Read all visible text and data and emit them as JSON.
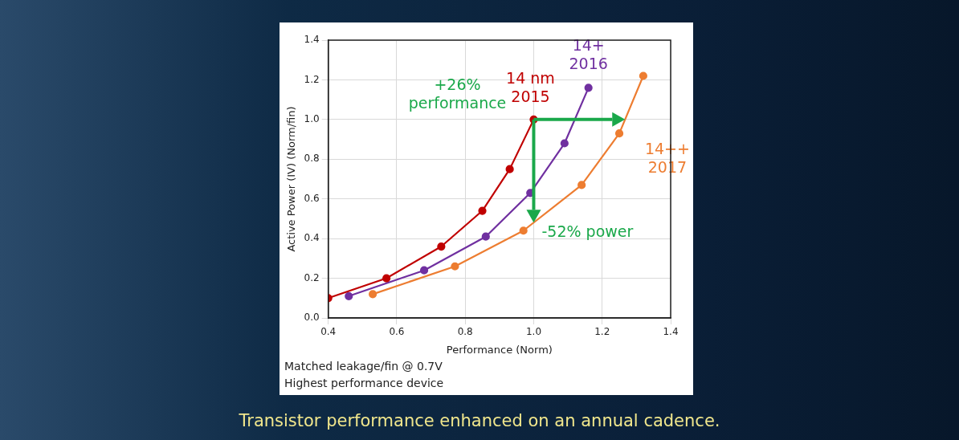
{
  "chart_data": {
    "type": "line",
    "title": "Transistor performance enhanced on an annual cadence.",
    "xlabel": "Performance (Norm)",
    "ylabel": "Active Power (IV) (Norm/fin)",
    "xlim": [
      0.4,
      1.4
    ],
    "xticks": [
      0.4,
      0.6,
      0.8,
      {
        "value": 1,
        "label": "1.0"
      },
      1.2,
      1.4
    ],
    "ylim": [
      0,
      1.4
    ],
    "yticks": [
      {
        "value": 0,
        "label": "0.0"
      },
      0.2,
      0.4,
      0.6,
      0.8,
      {
        "value": 1,
        "label": "1.0"
      },
      1.2,
      1.4
    ],
    "grid": true,
    "legend": false,
    "marker": "circle",
    "line_style": "solid",
    "series": [
      {
        "name": "14 nm\n2015",
        "color": "#c00000",
        "x": [
          0.4,
          0.57,
          0.73,
          0.85,
          0.93,
          1.0
        ],
        "values": [
          0.1,
          0.2,
          0.36,
          0.54,
          0.75,
          1.0
        ]
      },
      {
        "name": "14+\n2016",
        "color": "#7030a0",
        "x": [
          0.46,
          0.68,
          0.86,
          0.99,
          1.09,
          1.16
        ],
        "values": [
          0.11,
          0.24,
          0.41,
          0.63,
          0.88,
          1.16
        ]
      },
      {
        "name": "14++\n2017",
        "color": "#ed7d31",
        "x": [
          0.53,
          0.77,
          0.97,
          1.14,
          1.25,
          1.32
        ],
        "values": [
          0.12,
          0.26,
          0.44,
          0.67,
          0.93,
          1.22
        ]
      }
    ],
    "annotations": [
      "+26%\nperformance",
      {
        "text": "-52% power",
        "x": 1.0,
        "y": 0.48
      },
      "Matched leakage/fin @ 0.7V",
      "Highest performance device"
    ]
  }
}
